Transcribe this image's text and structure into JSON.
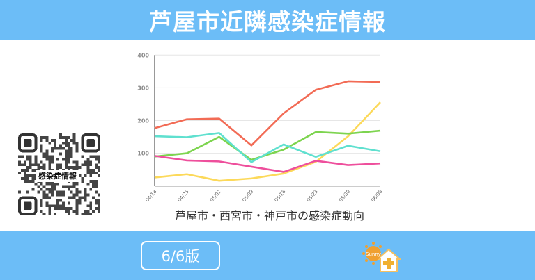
{
  "header": {
    "title": "芦屋市近隣感染症情報"
  },
  "qr": {
    "label": "感染症情報"
  },
  "chart_data": {
    "type": "line",
    "title": "芦屋市・西宮市・神戸市の感染症動向",
    "categories": [
      "04/18",
      "04/25",
      "05/02",
      "05/09",
      "05/16",
      "05/23",
      "05/30",
      "06/06"
    ],
    "ylim": [
      0,
      400
    ],
    "yticks": [
      100,
      200,
      300,
      400
    ],
    "grid": true,
    "series": [
      {
        "color": "#f26b55",
        "values": [
          177,
          204,
          206,
          124,
          222,
          294,
          320,
          318
        ]
      },
      {
        "color": "#fcd95a",
        "values": [
          26,
          36,
          16,
          23,
          38,
          74,
          152,
          256
        ]
      },
      {
        "color": "#7dd44f",
        "values": [
          90,
          100,
          150,
          80,
          111,
          165,
          160,
          169
        ]
      },
      {
        "color": "#5fe0cf",
        "values": [
          152,
          149,
          162,
          73,
          127,
          89,
          123,
          106
        ]
      },
      {
        "color": "#ee4f9c",
        "values": [
          92,
          78,
          75,
          59,
          43,
          77,
          64,
          69
        ]
      }
    ]
  },
  "footer": {
    "version": "6/6版",
    "logo_text": "Sunny"
  }
}
